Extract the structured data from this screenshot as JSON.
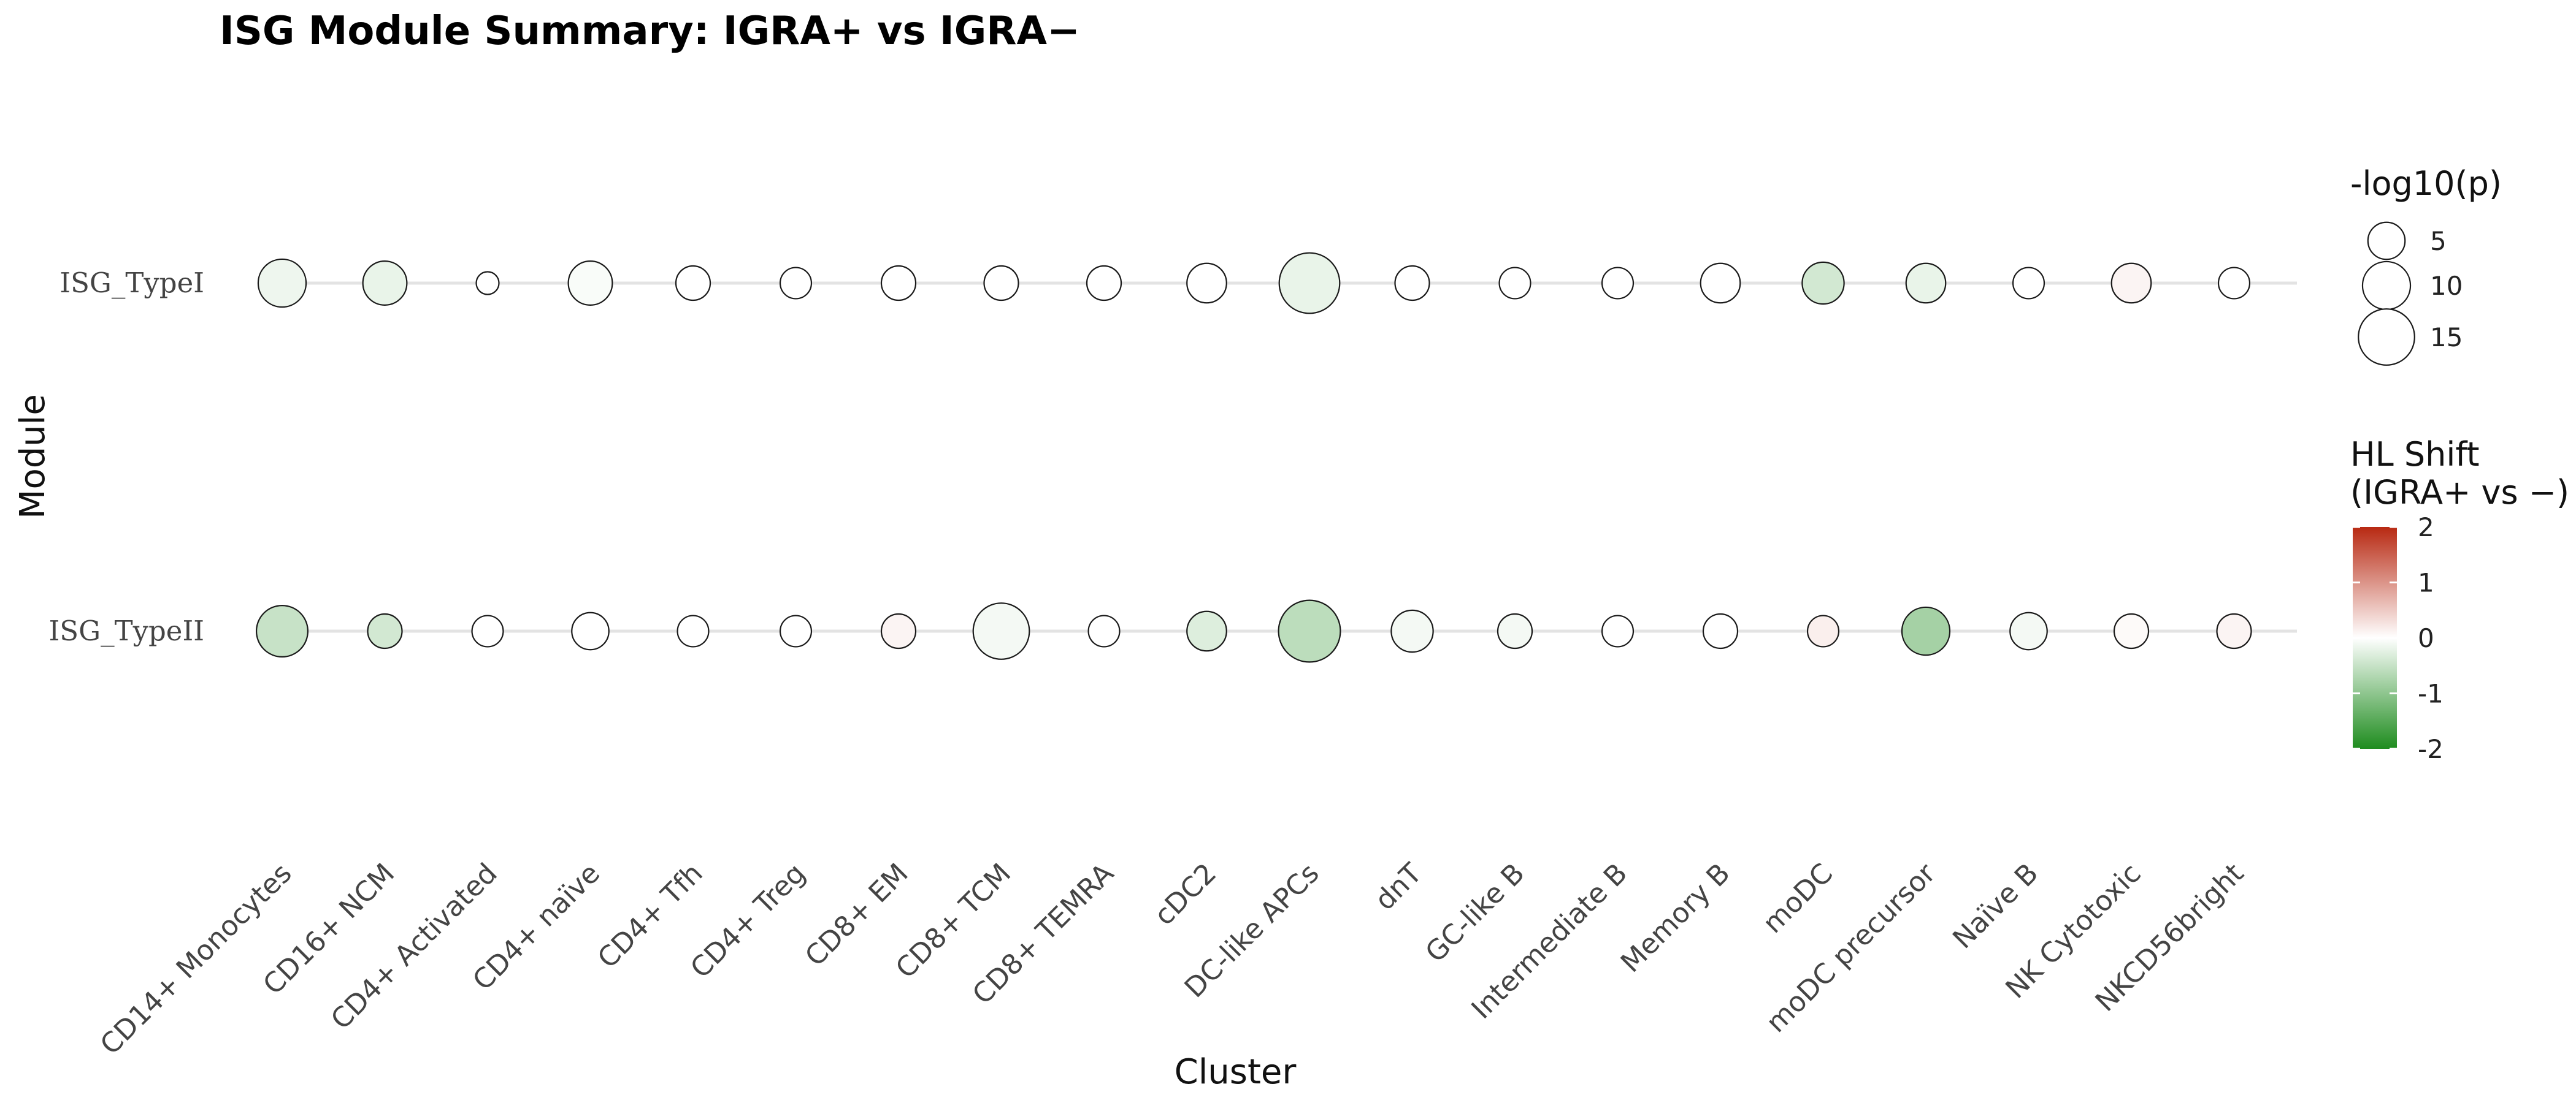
{
  "chart_data": {
    "type": "scatter",
    "title": "ISG Module Summary: IGRA+ vs IGRA−",
    "xlabel": "Cluster",
    "ylabel": "Module",
    "categories": [
      "CD14+ Monocytes",
      "CD16+ NCM",
      "CD4+ Activated",
      "CD4+ naïve",
      "CD4+ Tfh",
      "CD4+ Treg",
      "CD8+ EM",
      "CD8+ TCM",
      "CD8+ TEMRA",
      "cDC2",
      "DC-like APCs",
      "dnT",
      "GC-like B",
      "Intermediate B",
      "Memory B",
      "moDC",
      "moDC precursor",
      "Naïve B",
      "NK Cytotoxic",
      "NKCD56bright"
    ],
    "modules": [
      "ISG_TypeI",
      "ISG_TypeII"
    ],
    "grid": true,
    "series": [
      {
        "name": "ISG_TypeI",
        "neglog10p": [
          10,
          8,
          1,
          8,
          4,
          3,
          4,
          4,
          4,
          6,
          18,
          4,
          3,
          3,
          6,
          7,
          6,
          3,
          6,
          3
        ],
        "hl_shift": [
          -0.15,
          -0.2,
          0,
          -0.05,
          0,
          0,
          0,
          0,
          0,
          0,
          -0.2,
          0,
          0,
          0,
          0,
          -0.4,
          -0.2,
          0,
          0.1,
          0
        ]
      },
      {
        "name": "ISG_TypeII",
        "neglog10p": [
          12,
          4,
          3,
          5,
          3,
          3,
          4,
          15,
          3,
          6,
          19,
          7,
          4,
          3,
          4,
          3,
          10,
          5,
          4,
          4
        ],
        "hl_shift": [
          -0.5,
          -0.4,
          0,
          0,
          0,
          0,
          0.1,
          -0.1,
          0,
          -0.3,
          -0.6,
          -0.1,
          -0.1,
          0,
          0,
          0.15,
          -0.8,
          -0.1,
          0.05,
          0.1
        ]
      }
    ],
    "size_legend": {
      "title": "-log10(p)",
      "breaks": [
        5,
        10,
        15
      ]
    },
    "color_legend": {
      "title_line1": "HL Shift",
      "title_line2": "(IGRA+ vs −)",
      "range": [
        -2,
        2
      ],
      "breaks": [
        "2",
        "1",
        "0",
        "-1",
        "-2"
      ],
      "break_values": [
        2,
        1,
        0,
        -1,
        -2
      ],
      "colors": {
        "high": "#b82912",
        "mid": "#ffffff",
        "low": "#1e8c1e"
      }
    }
  }
}
